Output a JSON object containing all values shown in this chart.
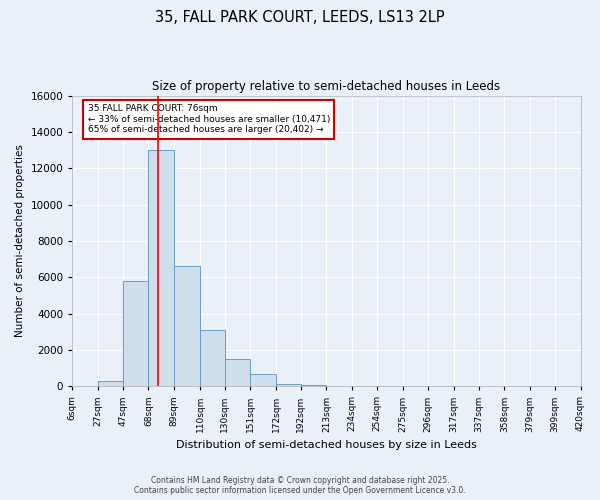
{
  "title": "35, FALL PARK COURT, LEEDS, LS13 2LP",
  "subtitle": "Size of property relative to semi-detached houses in Leeds",
  "xlabel": "Distribution of semi-detached houses by size in Leeds",
  "ylabel": "Number of semi-detached properties",
  "bin_edges": [
    6,
    27,
    47,
    68,
    89,
    110,
    130,
    151,
    172,
    192,
    213,
    234,
    254,
    275,
    296,
    317,
    337,
    358,
    379,
    399,
    420
  ],
  "bin_counts": [
    0,
    300,
    5800,
    13000,
    6600,
    3100,
    1500,
    700,
    150,
    60,
    20,
    8,
    4,
    2,
    1,
    1,
    0,
    0,
    0,
    0
  ],
  "bar_color": "#cfdeed",
  "bar_edge_color": "#6a9cc0",
  "red_line_x": 76,
  "annotation_title": "35 FALL PARK COURT: 76sqm",
  "annotation_line1": "← 33% of semi-detached houses are smaller (10,471)",
  "annotation_line2": "65% of semi-detached houses are larger (20,402) →",
  "annotation_box_color": "#ffffff",
  "annotation_box_edge": "#cc0000",
  "ylim": [
    0,
    16000
  ],
  "yticks": [
    0,
    2000,
    4000,
    6000,
    8000,
    10000,
    12000,
    14000,
    16000
  ],
  "tick_labels": [
    "6sqm",
    "27sqm",
    "47sqm",
    "68sqm",
    "89sqm",
    "110sqm",
    "130sqm",
    "151sqm",
    "172sqm",
    "192sqm",
    "213sqm",
    "234sqm",
    "254sqm",
    "275sqm",
    "296sqm",
    "317sqm",
    "337sqm",
    "358sqm",
    "379sqm",
    "399sqm",
    "420sqm"
  ],
  "footer_line1": "Contains HM Land Registry data © Crown copyright and database right 2025.",
  "footer_line2": "Contains public sector information licensed under the Open Government Licence v3.0.",
  "fig_background": "#eaf0f8",
  "plot_bg_color": "#eaf0f8",
  "grid_color": "#ffffff",
  "spine_color": "#aaaaaa"
}
